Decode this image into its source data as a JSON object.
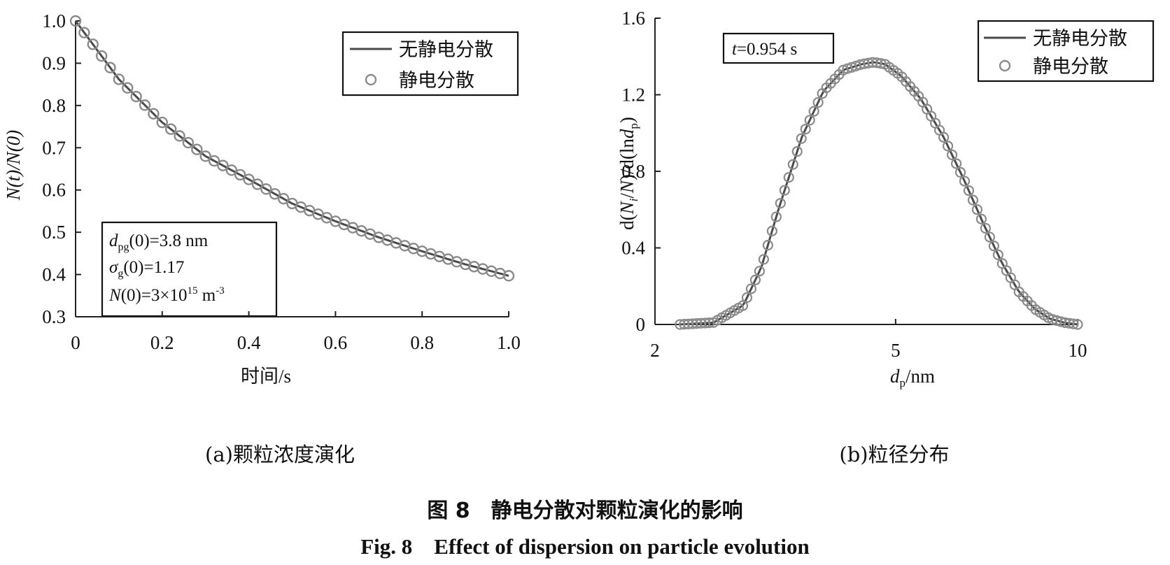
{
  "chart_data": [
    {
      "type": "line",
      "panel_label": "(a)颗粒浓度演化",
      "xlabel": "时间/s",
      "ylabel": "N(t)/N(0)",
      "xlim": [
        0,
        1.0
      ],
      "ylim": [
        0.3,
        1.0
      ],
      "x_ticks": [
        "0",
        "0.2",
        "0.4",
        "0.6",
        "0.8",
        "1.0"
      ],
      "y_ticks": [
        "0.3",
        "0.4",
        "0.5",
        "0.6",
        "0.7",
        "0.8",
        "0.9",
        "1.0"
      ],
      "legend": {
        "position": "top-right",
        "entries": [
          "无静电分散",
          "静电分散"
        ]
      },
      "annotation": {
        "line1": {
          "sym": "d",
          "sub": "pg",
          "rest": "(0)=3.8 nm"
        },
        "line2": {
          "sym": "σ",
          "sub": "g",
          "rest": "(0)=1.17"
        },
        "line3": {
          "sym": "N",
          "rest": "(0)=3×10",
          "sup1": "15",
          "unit": " m",
          "sup2": "-3"
        }
      },
      "x": [
        0,
        0.1,
        0.2,
        0.3,
        0.4,
        0.5,
        0.6,
        0.7,
        0.8,
        0.9,
        1.0
      ],
      "series": [
        {
          "name": "无静电分散",
          "style": "line",
          "values": [
            1.0,
            0.862,
            0.76,
            0.68,
            0.625,
            0.568,
            0.526,
            0.488,
            0.455,
            0.424,
            0.397
          ]
        },
        {
          "name": "静电分散",
          "style": "markers",
          "values": [
            1.0,
            0.862,
            0.76,
            0.68,
            0.625,
            0.568,
            0.526,
            0.488,
            0.455,
            0.424,
            0.397
          ]
        }
      ]
    },
    {
      "type": "line",
      "panel_label": "(b)粒径分布",
      "xlabel": {
        "sym": "d",
        "sub": "p",
        "rest": "/nm"
      },
      "ylabel": "d(N_i/N)/d(lnd_p)",
      "xscale": "log",
      "xlim": [
        2,
        10
      ],
      "ylim": [
        0,
        1.6
      ],
      "x_ticks": [
        "2",
        "5",
        "10"
      ],
      "y_ticks": [
        "0",
        "0.4",
        "0.8",
        "1.2",
        "1.6"
      ],
      "legend": {
        "position": "top-right",
        "entries": [
          "无静电分散",
          "静电分散"
        ]
      },
      "annotation": {
        "sym": "t",
        "rest": "=0.954 s"
      },
      "x": [
        2.2,
        2.5,
        2.8,
        3.0,
        3.2,
        3.5,
        3.8,
        4.1,
        4.4,
        4.6,
        4.8,
        5.1,
        5.5,
        6.0,
        6.5,
        7.0,
        7.5,
        8.0,
        8.5,
        9.0,
        9.5,
        10.0
      ],
      "series": [
        {
          "name": "无静电分散",
          "style": "line",
          "values": [
            0.0,
            0.01,
            0.1,
            0.3,
            0.6,
            0.98,
            1.22,
            1.33,
            1.36,
            1.37,
            1.36,
            1.3,
            1.18,
            0.98,
            0.75,
            0.52,
            0.32,
            0.17,
            0.08,
            0.03,
            0.01,
            0.0
          ]
        },
        {
          "name": "静电分散",
          "style": "markers",
          "values": [
            0.0,
            0.01,
            0.1,
            0.3,
            0.6,
            0.98,
            1.22,
            1.33,
            1.36,
            1.37,
            1.36,
            1.3,
            1.18,
            0.98,
            0.75,
            0.52,
            0.32,
            0.17,
            0.08,
            0.03,
            0.01,
            0.0
          ]
        }
      ]
    }
  ],
  "caption": {
    "zh": "图 8　静电分散对颗粒演化的影响",
    "en": "Fig. 8　Effect of dispersion on particle evolution"
  }
}
